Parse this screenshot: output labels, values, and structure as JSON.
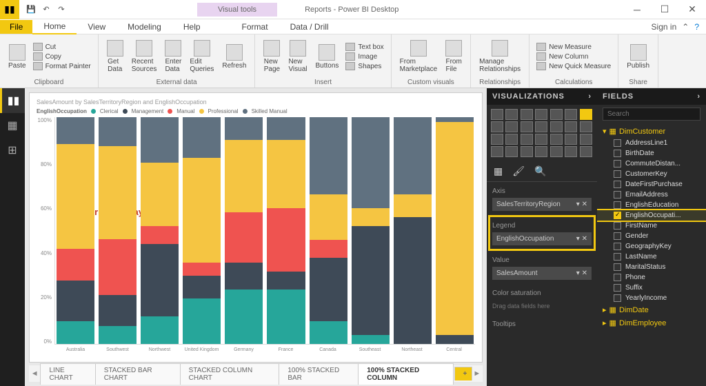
{
  "titlebar": {
    "visual_tools": "Visual tools",
    "title": "Reports - Power BI Desktop",
    "signin": "Sign in"
  },
  "menu": {
    "file": "File",
    "home": "Home",
    "view": "View",
    "modeling": "Modeling",
    "help": "Help",
    "format": "Format",
    "datadrill": "Data / Drill"
  },
  "ribbon": {
    "paste": "Paste",
    "cut": "Cut",
    "copy": "Copy",
    "fp": "Format Painter",
    "clipboard": "Clipboard",
    "getdata": "Get\nData",
    "recent": "Recent\nSources",
    "enter": "Enter\nData",
    "edit": "Edit\nQueries",
    "refresh": "Refresh",
    "external": "External data",
    "newpage": "New\nPage",
    "newvisual": "New\nVisual",
    "buttons": "Buttons",
    "textbox": "Text box",
    "image": "Image",
    "shapes": "Shapes",
    "insert": "Insert",
    "marketplace": "From\nMarketplace",
    "fromfile": "From\nFile",
    "custom": "Custom visuals",
    "relationships": "Manage\nRelationships",
    "rel": "Relationships",
    "newmeasure": "New Measure",
    "newcolumn": "New Column",
    "newquick": "New Quick Measure",
    "calc": "Calculations",
    "publish": "Publish",
    "share": "Share"
  },
  "chart": {
    "title": "SalesAmount by SalesTerritoryRegion and EnglishOccupation",
    "legend_label": "EnglishOccupation",
    "legend": [
      "Clerical",
      "Management",
      "Manual",
      "Professional",
      "Skilled Manual"
    ],
    "legend_colors": [
      "#26a69a",
      "#3e4a57",
      "#ef5350",
      "#f5c542",
      "#607180"
    ],
    "ylabels": [
      "100%",
      "80%",
      "60%",
      "40%",
      "20%",
      "0%"
    ],
    "categories": [
      "Australia",
      "Southwest",
      "Northwest",
      "United Kingdom",
      "Germany",
      "France",
      "Canada",
      "Southeast",
      "Northeast",
      "Central"
    ],
    "stacks": [
      [
        10,
        18,
        14,
        46,
        12
      ],
      [
        8,
        14,
        25,
        42,
        13
      ],
      [
        12,
        32,
        8,
        28,
        20
      ],
      [
        20,
        10,
        6,
        46,
        18
      ],
      [
        24,
        12,
        22,
        32,
        10
      ],
      [
        24,
        8,
        28,
        30,
        10
      ],
      [
        10,
        28,
        8,
        20,
        34
      ],
      [
        4,
        48,
        0,
        8,
        40
      ],
      [
        0,
        56,
        0,
        10,
        34
      ],
      [
        0,
        4,
        0,
        94,
        2
      ]
    ],
    "watermark": "©tutorialgateway.org"
  },
  "pagetabs": {
    "t1": "LINE CHART",
    "t2": "STACKED BAR CHART",
    "t3": "STACKED COLUMN CHART",
    "t4": "100% STACKED BAR",
    "t5": "100% STACKED COLUMN"
  },
  "viz": {
    "hdr": "VISUALIZATIONS",
    "axis": "Axis",
    "axis_val": "SalesTerritoryRegion",
    "legend": "Legend",
    "legend_val": "EnglishOccupation",
    "value": "Value",
    "value_val": "SalesAmount",
    "colorsat": "Color saturation",
    "drag": "Drag data fields here",
    "tooltips": "Tooltips"
  },
  "fields": {
    "hdr": "FIELDS",
    "search": "Search",
    "table1": "DimCustomer",
    "cols": [
      "AddressLine1",
      "BirthDate",
      "CommuteDistan...",
      "CustomerKey",
      "DateFirstPurchase",
      "EmailAddress",
      "EnglishEducation",
      "EnglishOccupati...",
      "FirstName",
      "Gender",
      "GeographyKey",
      "LastName",
      "MaritalStatus",
      "Phone",
      "Suffix",
      "YearlyIncome"
    ],
    "checked": "EnglishOccupati...",
    "table2": "DimDate",
    "table3": "DimEmployee"
  }
}
